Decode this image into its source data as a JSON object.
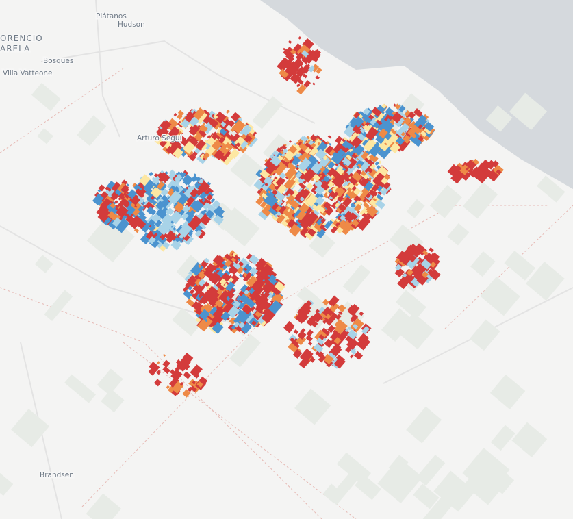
{
  "labels": {
    "platanos": "Plátanos",
    "hudson": "Hudson",
    "florencio_top": "ORENCIO",
    "florencio_bottom": "ARELA",
    "bosques": "Bosques",
    "villa_vatteone": "Villa Vatteone",
    "arturo_segui": "Arturo Seguí",
    "brandsen": "Brandsen"
  }
}
